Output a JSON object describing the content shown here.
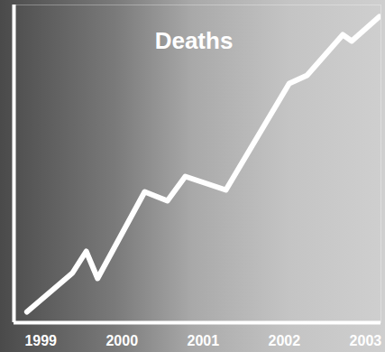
{
  "chart_data": {
    "type": "line",
    "title": "Deaths",
    "x": [
      1998.83,
      1999.39,
      1999.56,
      1999.7,
      2000.28,
      2000.56,
      2000.78,
      2001.28,
      2002.06,
      2002.28,
      2002.72,
      2002.83,
      2003.17
    ],
    "values": [
      12,
      55,
      79,
      49,
      145,
      135,
      162,
      147,
      265,
      274,
      319,
      312,
      339
    ],
    "color": "#ffffff",
    "xlim": [
      1998.67,
      2003.19
    ],
    "xticks": [
      1999,
      2000,
      2001,
      2002,
      2003
    ],
    "ylim": [
      0,
      352
    ],
    "grid": false,
    "tick_labels": "x"
  }
}
